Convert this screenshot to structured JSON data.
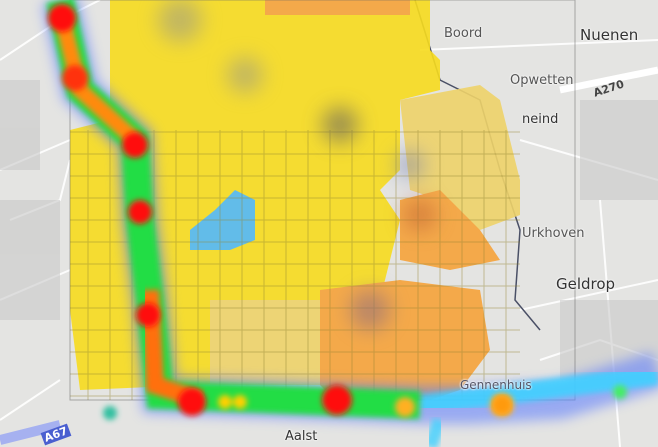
{
  "map": {
    "labels": {
      "boord": "Boord",
      "nuenen": "Nuenen",
      "opwetten": "Opwetten",
      "neind": "neind",
      "urkhoven": "Urkhoven",
      "geldrop": "Geldrop",
      "aalst": "Aalst",
      "gennenhuis": "Gennenhuis",
      "a270": "A270",
      "a67": "A67"
    },
    "colors": {
      "base": "#e4e4e2",
      "choropleth_yellow": "#f7dc1e",
      "choropleth_pale": "#efd36a",
      "choropleth_orange": "#f6a33a",
      "choropleth_blue": "#55b8ea",
      "heat_high": "#ff0000",
      "heat_mid": "#ffd000",
      "heat_low": "#22dd44",
      "heat_min": "#3fd0ff"
    }
  }
}
